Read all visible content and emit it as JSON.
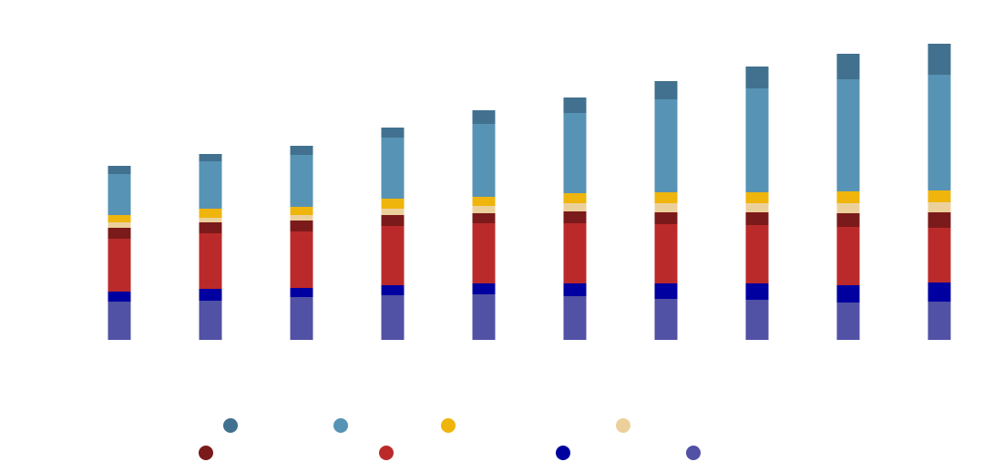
{
  "chart_data": {
    "type": "bar",
    "stacked": true,
    "title": "",
    "xlabel": "",
    "ylabel": "",
    "ylim": [
      0,
      324
    ],
    "grid": false,
    "legend_position": "bottom",
    "categories": [
      "",
      "",
      "",
      "",
      "",
      "",
      "",
      "",
      "",
      ""
    ],
    "series": [
      {
        "color": "#5151a5",
        "values": [
          42,
          43,
          47,
          49,
          50,
          48,
          45,
          44,
          41,
          42
        ]
      },
      {
        "color": "#0000a0",
        "values": [
          11,
          13,
          10,
          11,
          12,
          14,
          17,
          18,
          19,
          21
        ]
      },
      {
        "color": "#bb2a2a",
        "values": [
          58,
          61,
          62,
          65,
          66,
          66,
          65,
          64,
          64,
          60
        ]
      },
      {
        "color": "#7b1a1a",
        "values": [
          12,
          12,
          12,
          12,
          11,
          13,
          13,
          14,
          15,
          17
        ]
      },
      {
        "color": "#ecd09c",
        "values": [
          6,
          5,
          6,
          7,
          8,
          9,
          10,
          10,
          11,
          11
        ]
      },
      {
        "color": "#efb50c",
        "values": [
          8,
          10,
          9,
          11,
          10,
          11,
          12,
          12,
          13,
          13
        ]
      },
      {
        "color": "#5793b5",
        "values": [
          45,
          52,
          57,
          67,
          80,
          88,
          102,
          114,
          123,
          127
        ]
      },
      {
        "color": "#41718f",
        "values": [
          9,
          8,
          10,
          11,
          15,
          17,
          20,
          24,
          28,
          34
        ]
      }
    ]
  },
  "legend": {
    "row1": [
      {
        "color": "#41718f",
        "label": ""
      },
      {
        "color": "#5793b5",
        "label": ""
      },
      {
        "color": "#efb50c",
        "label": ""
      },
      {
        "color": "#ecd09c",
        "label": ""
      }
    ],
    "row2": [
      {
        "color": "#7b1a1a",
        "label": ""
      },
      {
        "color": "#bb2a2a",
        "label": ""
      },
      {
        "color": "#0000a0",
        "label": ""
      },
      {
        "color": "#5151a5",
        "label": ""
      }
    ]
  }
}
